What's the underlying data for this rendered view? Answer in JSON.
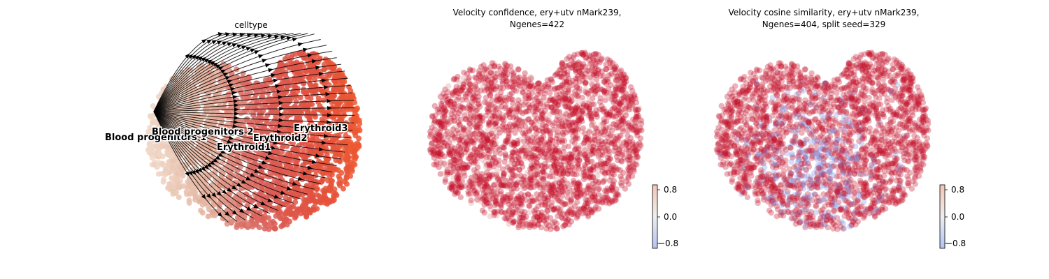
{
  "chart_data": [
    {
      "type": "scatter",
      "subtype": "velocity-stream-embedding",
      "title": "celltype",
      "color_by": "celltype",
      "cluster_labels": [
        {
          "text": "Blood progenitors 1",
          "color": "#f0d8c8"
        },
        {
          "text": "Blood progenitors 2",
          "color": "#e5b7a3"
        },
        {
          "text": "Erythroid1",
          "color": "#d9605a"
        },
        {
          "text": "Erythroid2",
          "color": "#e2503f"
        },
        {
          "text": "Erythroid3",
          "color": "#ef5a2e"
        }
      ],
      "legend": "on data",
      "grid": false,
      "streamlines": true
    },
    {
      "type": "scatter",
      "title_lines": [
        "Velocity confidence, ery+utv nMark239,",
        "Ngenes=422"
      ],
      "colormap": "coolwarm",
      "colorbar": {
        "ticks": [
          "0.8",
          "0.0",
          "−0.8"
        ],
        "range": [
          -0.9,
          0.9
        ]
      },
      "point_color_mostly": "#c5122a",
      "grid": false
    },
    {
      "type": "scatter",
      "title_lines": [
        "Velocity cosine similarity, ery+utv nMark239,",
        "Ngenes=404, split seed=329"
      ],
      "colormap": "coolwarm",
      "colorbar": {
        "ticks": [
          "0.8",
          "0.0",
          "−0.8"
        ],
        "range": [
          -0.9,
          0.9
        ]
      },
      "point_color_mostly": "#c5122a",
      "point_color_minority": "#7c95e8",
      "grid": false
    }
  ]
}
